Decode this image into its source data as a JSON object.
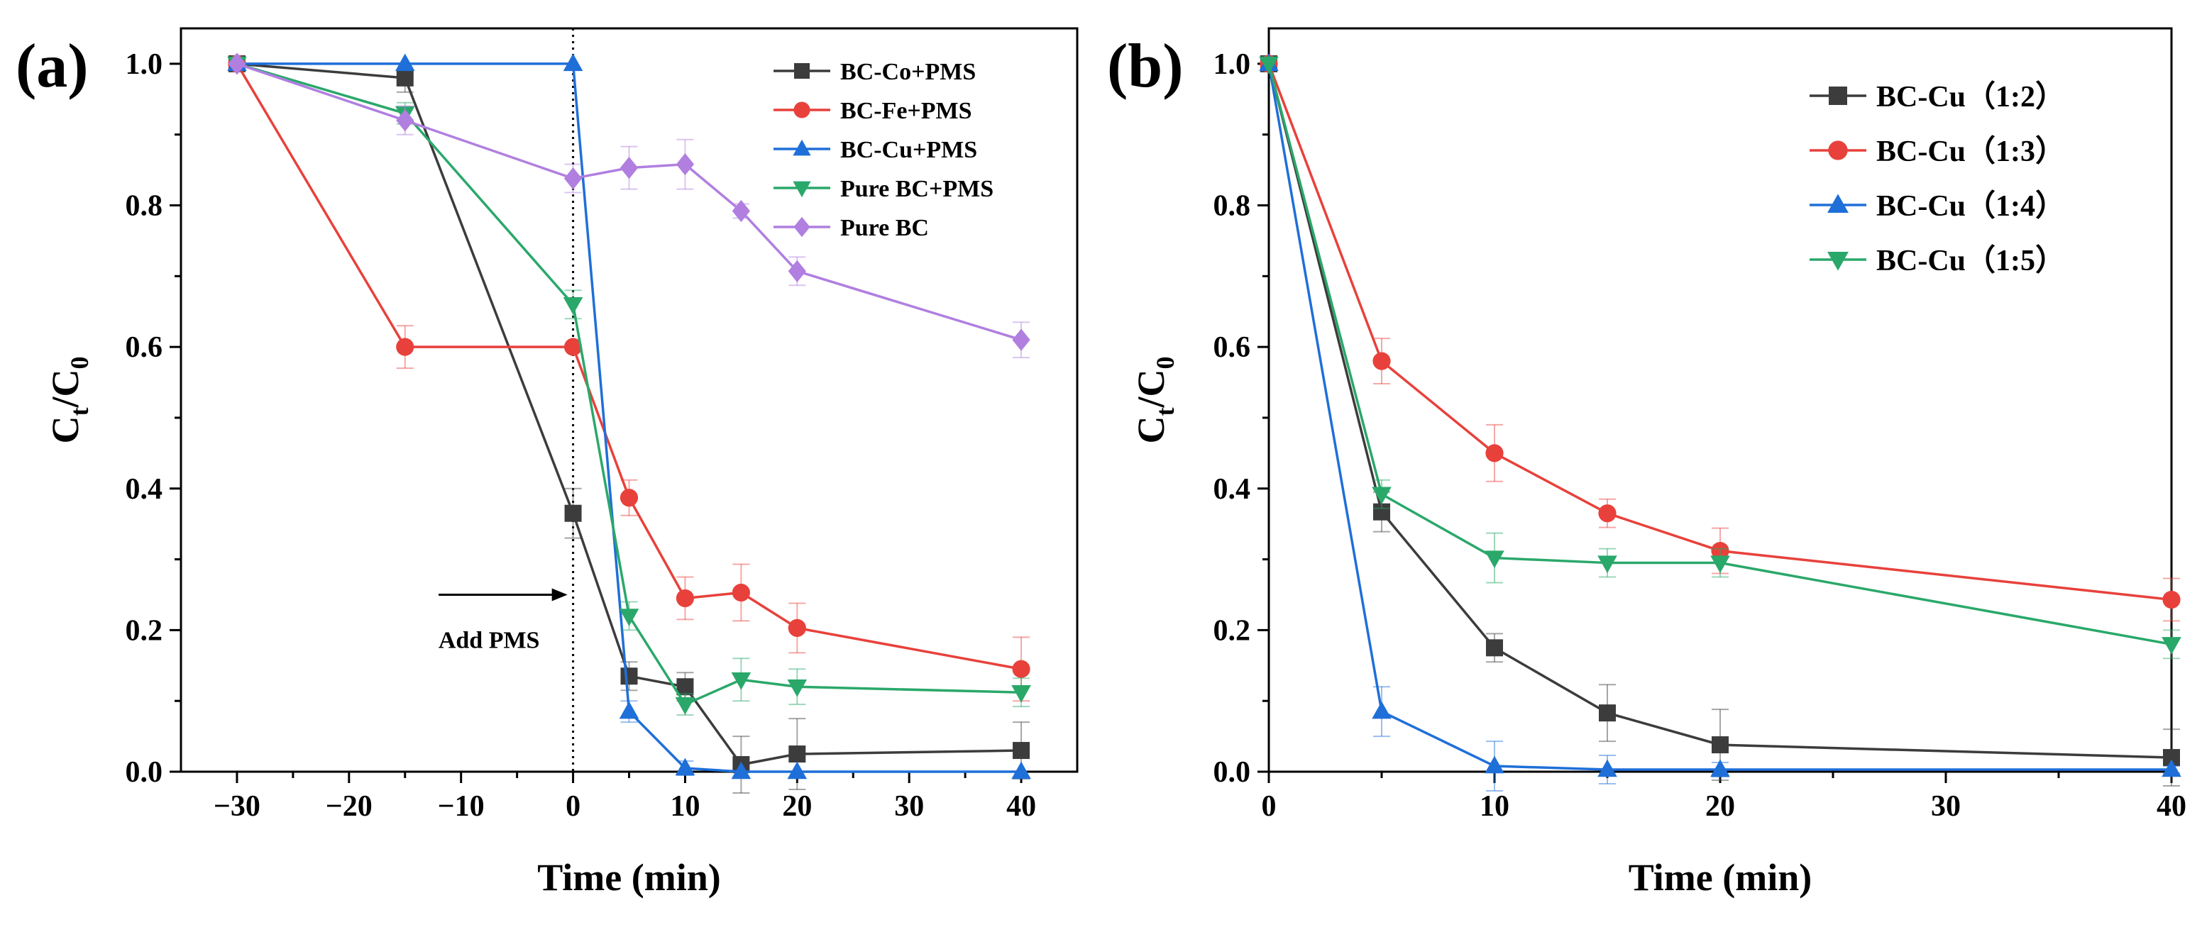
{
  "chart_data": [
    {
      "type": "line",
      "panel_label": "(a)",
      "xlabel": "Time (min)",
      "ylabel_main": "C",
      "ylabel_sub1": "t",
      "ylabel_sep": "/C",
      "ylabel_sub2": "0",
      "xlim": [
        -35,
        45
      ],
      "ylim": [
        0,
        1.05
      ],
      "xticks": [
        -30,
        -20,
        -10,
        0,
        10,
        20,
        30,
        40
      ],
      "xtick_labels": [
        "−30",
        "−20",
        "−10",
        "0",
        "10",
        "20",
        "30",
        "40"
      ],
      "yticks": [
        0.0,
        0.2,
        0.4,
        0.6,
        0.8,
        1.0
      ],
      "ytick_labels": [
        "0.0",
        "0.2",
        "0.4",
        "0.6",
        "0.8",
        "1.0"
      ],
      "legend_position": "top-right",
      "annotations": [
        {
          "text": "Add PMS",
          "arrow": {
            "from_x": -12,
            "to_x": -0.5,
            "y": 0.25
          },
          "text_x": -7.5,
          "text_y": 0.175
        }
      ],
      "vline": {
        "x": 0,
        "style": "dotted"
      },
      "series": [
        {
          "name": "BC-Co+PMS",
          "color": "#3c3c3c",
          "marker": "square",
          "x": [
            -30,
            -15,
            0,
            5,
            10,
            15,
            20,
            40
          ],
          "y": [
            1.0,
            0.98,
            0.365,
            0.135,
            0.12,
            0.01,
            0.025,
            0.03
          ],
          "err": [
            0,
            0.02,
            0.035,
            0.02,
            0.02,
            0.04,
            0.05,
            0.04
          ]
        },
        {
          "name": "BC-Fe+PMS",
          "color": "#e8413b",
          "marker": "circle",
          "x": [
            -30,
            -15,
            0,
            5,
            10,
            15,
            20,
            40
          ],
          "y": [
            1.0,
            0.6,
            0.6,
            0.387,
            0.245,
            0.253,
            0.203,
            0.145
          ],
          "err": [
            0,
            0.03,
            0,
            0.025,
            0.03,
            0.04,
            0.035,
            0.045
          ]
        },
        {
          "name": "BC-Cu+PMS",
          "color": "#1f6fd8",
          "marker": "triangle-up",
          "x": [
            -30,
            -15,
            0,
            5,
            10,
            15,
            20,
            40
          ],
          "y": [
            1.0,
            1.0,
            1.0,
            0.085,
            0.005,
            0.0,
            0.0,
            0.0
          ],
          "err": [
            0,
            0,
            0,
            0.015,
            0.01,
            0,
            0,
            0
          ]
        },
        {
          "name": "Pure BC+PMS",
          "color": "#2aa86a",
          "marker": "triangle-down",
          "x": [
            -30,
            -15,
            0,
            5,
            10,
            15,
            20,
            40
          ],
          "y": [
            1.0,
            0.93,
            0.66,
            0.22,
            0.095,
            0.13,
            0.12,
            0.112
          ],
          "err": [
            0,
            0.015,
            0.02,
            0.02,
            0.015,
            0.03,
            0.025,
            0.02
          ]
        },
        {
          "name": "Pure BC",
          "color": "#b07fe0",
          "marker": "diamond",
          "x": [
            -30,
            -15,
            0,
            5,
            10,
            15,
            20,
            40
          ],
          "y": [
            1.0,
            0.92,
            0.838,
            0.853,
            0.858,
            0.792,
            0.707,
            0.61
          ],
          "err": [
            0,
            0.02,
            0.02,
            0.03,
            0.035,
            0.01,
            0.02,
            0.025
          ]
        }
      ]
    },
    {
      "type": "line",
      "panel_label": "(b)",
      "xlabel": "Time (min)",
      "ylabel_main": "C",
      "ylabel_sub1": "t",
      "ylabel_sep": "/C",
      "ylabel_sub2": "0",
      "xlim": [
        0,
        40
      ],
      "ylim": [
        0,
        1.05
      ],
      "xticks": [
        0,
        10,
        20,
        30,
        40
      ],
      "xtick_labels": [
        "0",
        "10",
        "20",
        "30",
        "40"
      ],
      "yticks": [
        0.0,
        0.2,
        0.4,
        0.6,
        0.8,
        1.0
      ],
      "ytick_labels": [
        "0.0",
        "0.2",
        "0.4",
        "0.6",
        "0.8",
        "1.0"
      ],
      "legend_position": "top-right",
      "series": [
        {
          "name": "BC-Cu（1:2）",
          "color": "#3c3c3c",
          "marker": "square",
          "x": [
            0,
            5,
            10,
            15,
            20,
            40
          ],
          "y": [
            1.0,
            0.367,
            0.175,
            0.083,
            0.038,
            0.02
          ],
          "err": [
            0,
            0.028,
            0.02,
            0.04,
            0.05,
            0.04
          ]
        },
        {
          "name": "BC-Cu（1:3）",
          "color": "#e8413b",
          "marker": "circle",
          "x": [
            0,
            5,
            10,
            15,
            20,
            40
          ],
          "y": [
            1.0,
            0.58,
            0.45,
            0.365,
            0.312,
            0.243
          ],
          "err": [
            0,
            0.032,
            0.04,
            0.02,
            0.032,
            0.03
          ]
        },
        {
          "name": "BC-Cu（1:4）",
          "color": "#1f6fd8",
          "marker": "triangle-up",
          "x": [
            0,
            5,
            10,
            15,
            20,
            40
          ],
          "y": [
            1.0,
            0.085,
            0.008,
            0.003,
            0.003,
            0.003
          ],
          "err": [
            0,
            0.035,
            0.035,
            0.02,
            0.01,
            0.005
          ]
        },
        {
          "name": "BC-Cu（1:5）",
          "color": "#2aa86a",
          "marker": "triangle-down",
          "x": [
            0,
            5,
            10,
            15,
            20,
            40
          ],
          "y": [
            1.0,
            0.392,
            0.302,
            0.295,
            0.295,
            0.18
          ],
          "err": [
            0,
            0.02,
            0.035,
            0.02,
            0.02,
            0.02
          ]
        }
      ]
    }
  ]
}
